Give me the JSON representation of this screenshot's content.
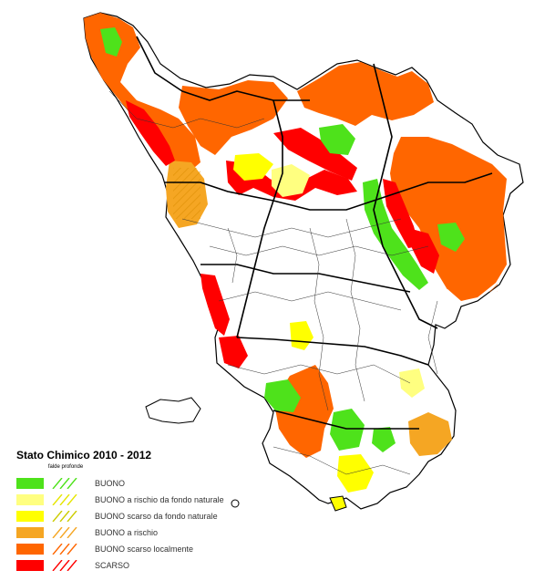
{
  "legend": {
    "title": "Stato Chimico 2010 - 2012",
    "subheader": "falde profonde",
    "items": [
      {
        "label": "BUONO",
        "color": "#4ee21b"
      },
      {
        "label": "BUONO a rischio da fondo naturale",
        "color": "#ffff80"
      },
      {
        "label": "BUONO scarso da fondo naturale",
        "color": "#ffff00"
      },
      {
        "label": "BUONO a rischio",
        "color": "#f5a623"
      },
      {
        "label": "BUONO scarso localmente",
        "color": "#ff6600"
      },
      {
        "label": "SCARSO",
        "color": "#ff0000"
      }
    ]
  }
}
